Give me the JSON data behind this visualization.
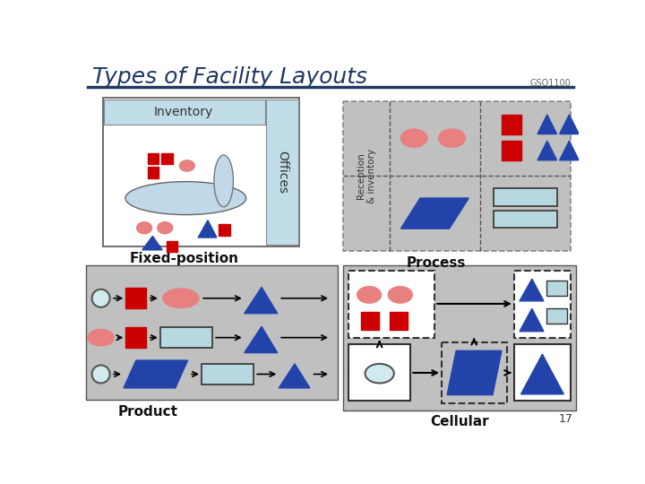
{
  "title": "Types of Facility Layouts",
  "subtitle": "GSO1100",
  "title_color": "#1F3864",
  "bg_color": "#FFFFFF",
  "label_fixed": "Fixed-position",
  "label_process": "Process",
  "label_product": "Product",
  "label_cellular": "Cellular",
  "page_number": "17",
  "pink": "#E88080",
  "red": "#CC0000",
  "blue_dark": "#2244AA",
  "blue_med": "#3355CC",
  "blue_light": "#B8D8E0",
  "gray_bg": "#C0C0C0",
  "inventory_bg": "#C0DDE8",
  "white": "#FFFFFF",
  "circle_fill": "#D0EAF0"
}
